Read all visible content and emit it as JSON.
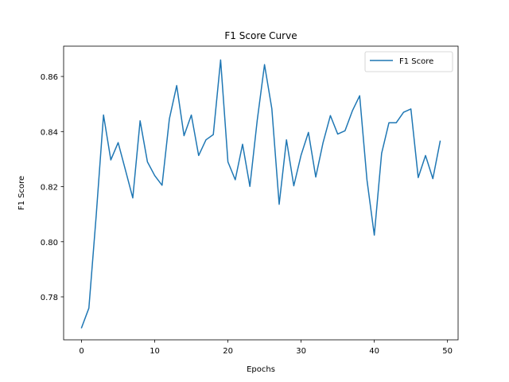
{
  "chart_data": {
    "type": "line",
    "title": "F1 Score Curve",
    "xlabel": "Epochs",
    "ylabel": "F1 Score",
    "xlim": [
      -2.45,
      51.45
    ],
    "ylim": [
      0.7644,
      0.871
    ],
    "xticks": [
      0,
      10,
      20,
      30,
      40,
      50
    ],
    "xtick_labels": [
      "0",
      "10",
      "20",
      "30",
      "40",
      "50"
    ],
    "yticks": [
      0.78,
      0.8,
      0.82,
      0.84,
      0.86
    ],
    "ytick_labels": [
      "0.78",
      "0.80",
      "0.82",
      "0.84",
      "0.86"
    ],
    "grid": false,
    "legend": {
      "position": "upper-right",
      "entries": [
        "F1 Score"
      ]
    },
    "series": [
      {
        "name": "F1 Score",
        "color": "#1f77b4",
        "x": [
          0,
          1,
          2,
          3,
          4,
          5,
          6,
          7,
          8,
          9,
          10,
          11,
          12,
          13,
          14,
          15,
          16,
          17,
          18,
          19,
          20,
          21,
          22,
          23,
          24,
          25,
          26,
          27,
          28,
          29,
          30,
          31,
          32,
          33,
          34,
          35,
          36,
          37,
          38,
          39,
          40,
          41,
          42,
          43,
          44,
          45,
          46,
          47,
          48,
          49
        ],
        "y": [
          0.7688,
          0.7759,
          0.8095,
          0.846,
          0.8297,
          0.836,
          0.826,
          0.8159,
          0.8439,
          0.829,
          0.824,
          0.8205,
          0.8446,
          0.8567,
          0.8385,
          0.846,
          0.8313,
          0.837,
          0.8389,
          0.866,
          0.829,
          0.8225,
          0.8354,
          0.8201,
          0.844,
          0.8643,
          0.8483,
          0.8136,
          0.837,
          0.8203,
          0.8315,
          0.8397,
          0.8235,
          0.836,
          0.8458,
          0.8391,
          0.8403,
          0.8475,
          0.853,
          0.8224,
          0.8024,
          0.8321,
          0.8432,
          0.8432,
          0.847,
          0.8482,
          0.8233,
          0.8313,
          0.8229,
          0.8365
        ]
      }
    ]
  }
}
